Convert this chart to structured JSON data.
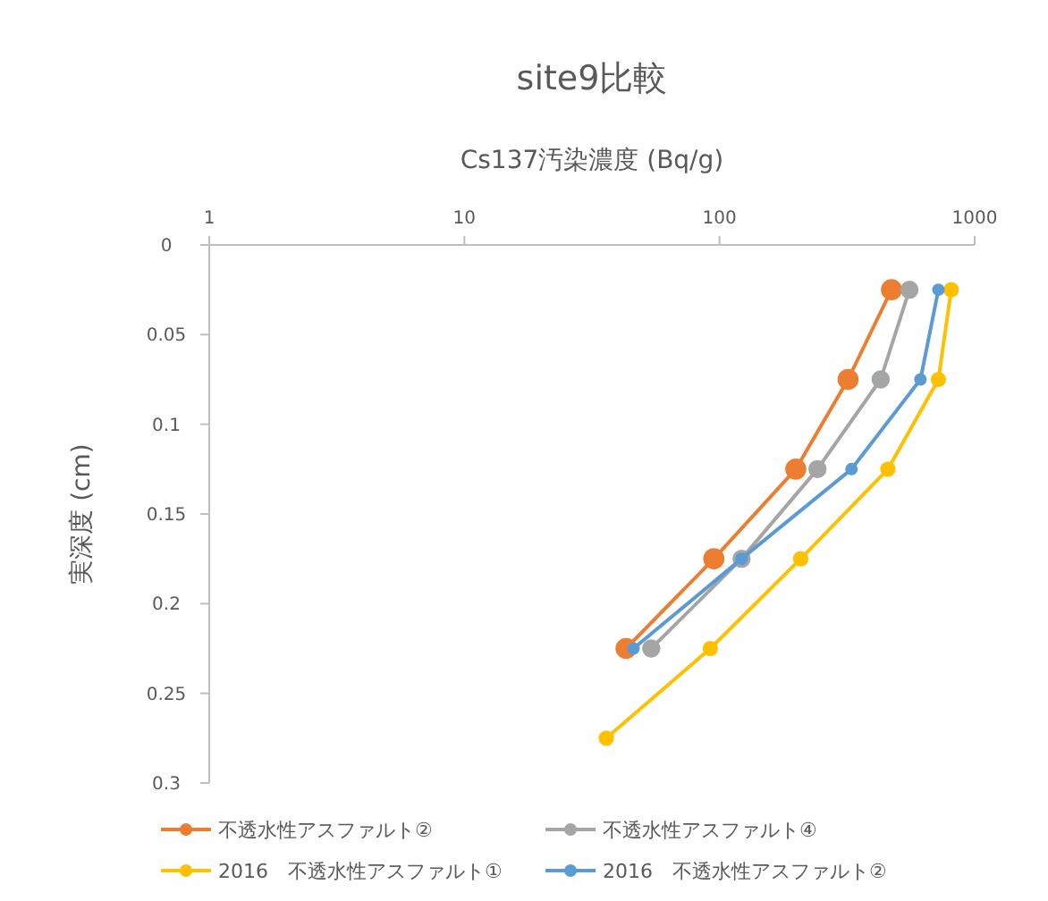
{
  "chart_data": {
    "type": "line",
    "title": "site9比較",
    "xlabel": "Cs137汚染濃度 (Bq/g)",
    "ylabel": "実深度 (cm)",
    "log": "x",
    "xlim": [
      1,
      1000
    ],
    "xticks": [
      1,
      10,
      100,
      1000
    ],
    "ylim": [
      0.3,
      0
    ],
    "yticks": [
      0,
      0.05,
      0.1,
      0.15,
      0.2,
      0.25,
      0.3
    ],
    "grid": false,
    "legend": "bottom",
    "marker": "circle",
    "line_style": "solid",
    "series": [
      {
        "name": "不透水性アスファルト②",
        "color": "#ed7d31",
        "x": [
          472,
          319,
          199,
          95,
          43
        ],
        "values": [
          0.025,
          0.075,
          0.125,
          0.175,
          0.225
        ]
      },
      {
        "name": "不透水性アスファルト④",
        "color": "#a5a5a5",
        "x": [
          555,
          428,
          242,
          122,
          54
        ],
        "values": [
          0.025,
          0.075,
          0.125,
          0.175,
          0.225
        ]
      },
      {
        "name": "2016　不透水性アスファルト①",
        "color": "#ffc000",
        "x": [
          809,
          721,
          457,
          208,
          92,
          36
        ],
        "values": [
          0.025,
          0.075,
          0.125,
          0.175,
          0.225,
          0.275
        ]
      },
      {
        "name": "2016　不透水性アスファルト②",
        "color": "#5b9bd5",
        "x": [
          721,
          613,
          329,
          122,
          46
        ],
        "values": [
          0.025,
          0.075,
          0.125,
          0.175,
          0.225
        ]
      }
    ]
  }
}
